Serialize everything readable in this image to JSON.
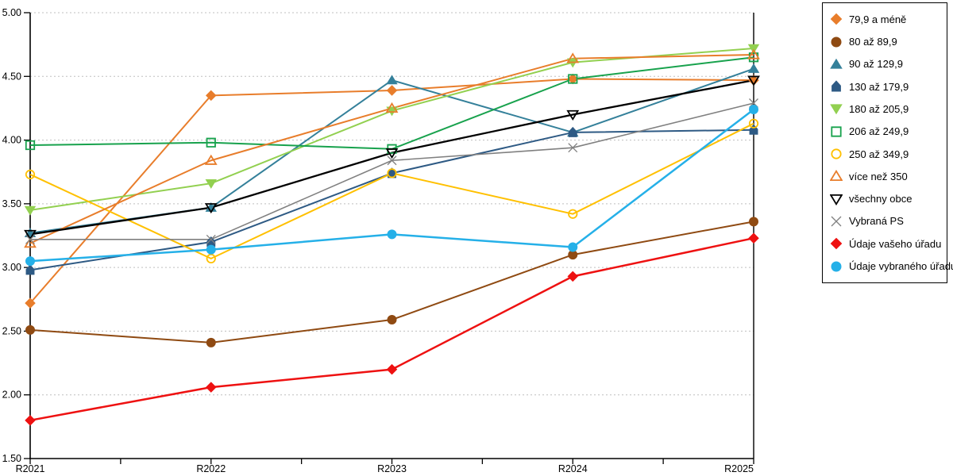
{
  "chart_data": {
    "type": "line",
    "title": "",
    "xlabel": "",
    "ylabel": "",
    "categories": [
      "R2021",
      "R2022",
      "R2023",
      "R2024",
      "R2025"
    ],
    "series": [
      {
        "name": "79,9 a méně",
        "marker": "diamond",
        "style": "filled",
        "color": "#E87D2B",
        "values": [
          2.72,
          4.35,
          4.39,
          4.48,
          4.47
        ]
      },
      {
        "name": "80 až 89,9",
        "marker": "circle",
        "style": "filled",
        "color": "#8F4A12",
        "values": [
          2.51,
          2.41,
          2.59,
          3.1,
          3.36
        ]
      },
      {
        "name": "90 až 129,9",
        "marker": "triangle-up",
        "style": "filled",
        "color": "#34809A",
        "values": [
          3.27,
          3.47,
          4.47,
          4.06,
          4.56
        ]
      },
      {
        "name": "130 až 179,9",
        "marker": "pentagon",
        "style": "filled",
        "color": "#2E5A84",
        "values": [
          2.98,
          3.2,
          3.74,
          4.06,
          4.08
        ]
      },
      {
        "name": "180 až 205,9",
        "marker": "triangle-down",
        "style": "filled",
        "color": "#92D050",
        "values": [
          3.45,
          3.66,
          4.23,
          4.61,
          4.72
        ]
      },
      {
        "name": "206 až 249,9",
        "marker": "square",
        "style": "open",
        "color": "#18A24D",
        "values": [
          3.96,
          3.98,
          3.93,
          4.48,
          4.65
        ]
      },
      {
        "name": "250 až 349,9",
        "marker": "circle",
        "style": "open",
        "color": "#FFC000",
        "values": [
          3.73,
          3.07,
          3.74,
          3.42,
          4.13
        ]
      },
      {
        "name": "více než 350",
        "marker": "triangle-up",
        "style": "open",
        "color": "#E87D2B",
        "values": [
          3.19,
          3.84,
          4.25,
          4.64,
          4.67
        ]
      },
      {
        "name": "všechny obce",
        "marker": "triangle-down",
        "style": "open",
        "color": "#000000",
        "values": [
          3.26,
          3.47,
          3.9,
          4.2,
          4.47
        ]
      },
      {
        "name": "Vybraná PS",
        "marker": "x",
        "style": "open",
        "color": "#808080",
        "values": [
          3.22,
          3.22,
          3.84,
          3.94,
          4.29
        ]
      },
      {
        "name": "Údaje vašeho úřadu",
        "marker": "diamond",
        "style": "filled",
        "color": "#EE1111",
        "values": [
          1.8,
          2.06,
          2.2,
          2.93,
          3.23
        ]
      },
      {
        "name": "Údaje vybraného úřadu",
        "marker": "circle",
        "style": "filled",
        "color": "#25B0E8",
        "values": [
          3.05,
          3.14,
          3.26,
          3.16,
          4.24
        ]
      }
    ],
    "ylim": [
      1.5,
      5.0
    ],
    "ytick_step": 0.5,
    "ytick_labels": [
      "5.00",
      "4.50",
      "4.00",
      "3.50",
      "3.00",
      "2.50",
      "2.00",
      "1.50"
    ],
    "grid": "horizontal dashed gridlines at every 0.50",
    "legend_position": "right",
    "axis_color": "#000000",
    "grid_color": "#BFBFBF"
  }
}
